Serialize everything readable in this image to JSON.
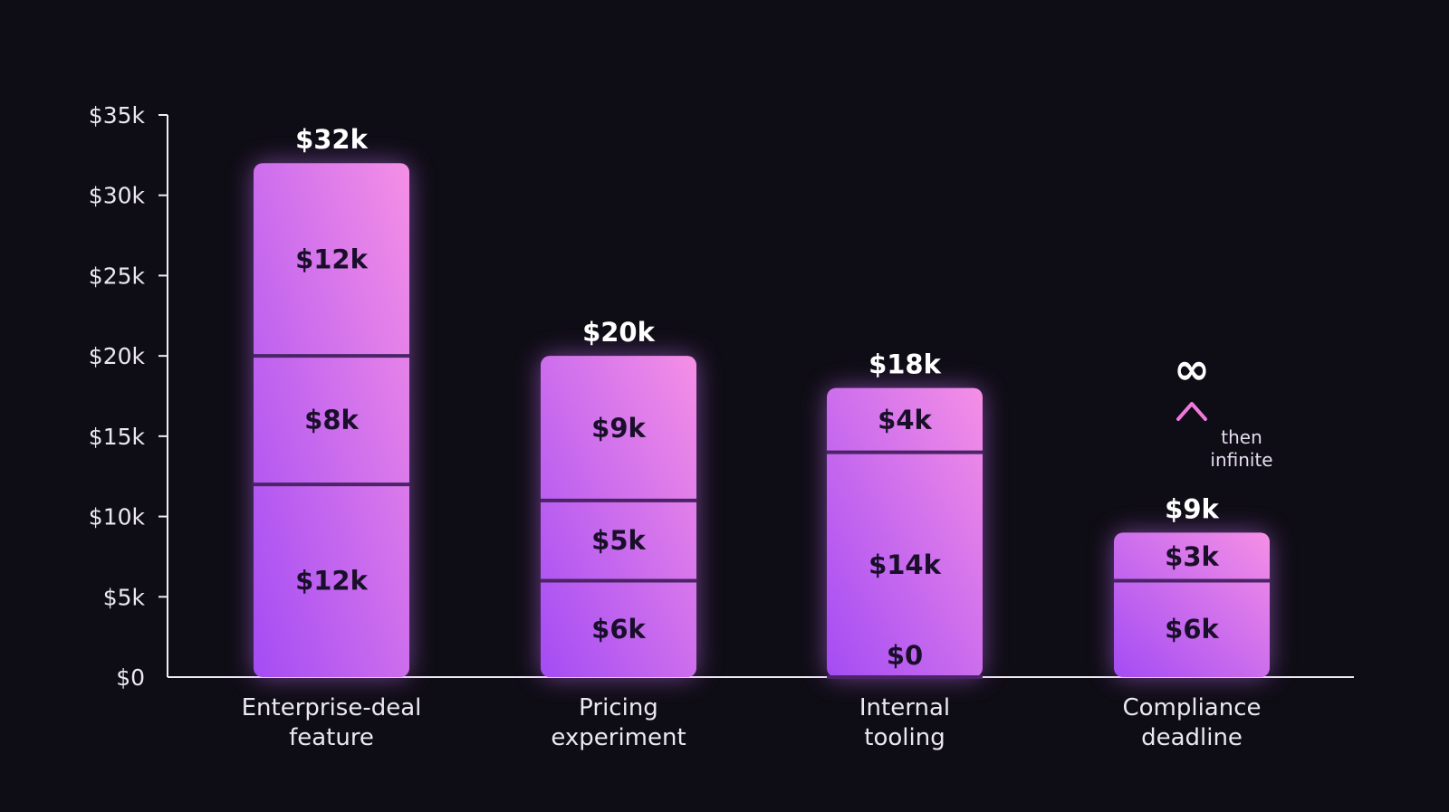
{
  "chart_data": {
    "type": "bar",
    "stacked": true,
    "categories": [
      [
        "Enterprise-deal",
        "feature"
      ],
      [
        "Pricing",
        "experiment"
      ],
      [
        "Internal",
        "tooling"
      ],
      [
        "Compliance",
        "deadline"
      ]
    ],
    "stacks": [
      {
        "total": 32,
        "total_label": "$32k",
        "segments": [
          {
            "value": 12,
            "label": "$12k"
          },
          {
            "value": 8,
            "label": "$8k"
          },
          {
            "value": 12,
            "label": "$12k"
          }
        ]
      },
      {
        "total": 20,
        "total_label": "$20k",
        "segments": [
          {
            "value": 6,
            "label": "$6k"
          },
          {
            "value": 5,
            "label": "$5k"
          },
          {
            "value": 9,
            "label": "$9k"
          }
        ]
      },
      {
        "total": 18,
        "total_label": "$18k",
        "segments": [
          {
            "value": 0,
            "label": "$0"
          },
          {
            "value": 14,
            "label": "$14k"
          },
          {
            "value": 4,
            "label": "$4k"
          }
        ]
      },
      {
        "total": 9,
        "total_label": "$9k",
        "segments": [
          {
            "value": 6,
            "label": "$6k"
          },
          {
            "value": 3,
            "label": "$3k"
          }
        ],
        "annotation": {
          "symbol": "∞",
          "note": [
            "then",
            "infinite"
          ]
        }
      }
    ],
    "yticks": [
      {
        "value": 0,
        "label": "$0"
      },
      {
        "value": 5,
        "label": "$5k"
      },
      {
        "value": 10,
        "label": "$10k"
      },
      {
        "value": 15,
        "label": "$15k"
      },
      {
        "value": 20,
        "label": "$20k"
      },
      {
        "value": 25,
        "label": "$25k"
      },
      {
        "value": 30,
        "label": "$30k"
      },
      {
        "value": 35,
        "label": "$35k"
      }
    ],
    "ylim": [
      0,
      35
    ],
    "grid": false,
    "colors": {
      "background": "#0e0c14",
      "bar_top": "#f58fe6",
      "bar_bottom": "#a44cf4",
      "glow": "#c06cf5",
      "divider": "#4a2466",
      "axis": "#f0ecf4",
      "accent": "#f078dc"
    }
  }
}
